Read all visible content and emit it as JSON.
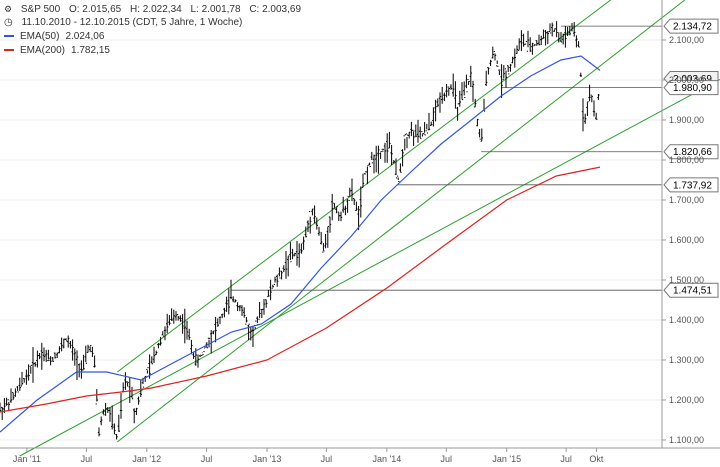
{
  "header": {
    "symbol": "S&P 500",
    "open": "O: 2.015,65",
    "high": "H: 2.022,34",
    "low": "L: 2.001,78",
    "close": "C: 2.003,69",
    "range": "11.10.2010 - 12.10.2015 (CDT, 5 Jahre, 1 Woche)"
  },
  "legend": [
    {
      "label": "EMA(50)",
      "value": "2.024,06",
      "color": "#3355dd"
    },
    {
      "label": "EMA(200)",
      "value": "1.782,15",
      "color": "#dd2222"
    }
  ],
  "chart_data": {
    "type": "line",
    "title": "S&P 500",
    "x_range": [
      "2010-10-11",
      "2015-10-12"
    ],
    "ylim": [
      1080,
      2200
    ],
    "y_ticks": [
      "1.100,00",
      "1.200,00",
      "1.300,00",
      "1.400,00",
      "1.500,00",
      "1.600,00",
      "1.700,00",
      "1.800,00",
      "1.900,00",
      "2.000,00",
      "2.100,00"
    ],
    "x_ticks": [
      {
        "label": "Jan '11",
        "date": "2011-01-01"
      },
      {
        "label": "Jul",
        "date": "2011-07-01"
      },
      {
        "label": "Jan '12",
        "date": "2012-01-01"
      },
      {
        "label": "Jul",
        "date": "2012-07-01"
      },
      {
        "label": "Jan '13",
        "date": "2013-01-01"
      },
      {
        "label": "Jul",
        "date": "2013-07-01"
      },
      {
        "label": "Jan '14",
        "date": "2014-01-01"
      },
      {
        "label": "Jul",
        "date": "2014-07-01"
      },
      {
        "label": "Jan '15",
        "date": "2015-01-01"
      },
      {
        "label": "Jul",
        "date": "2015-07-01"
      },
      {
        "label": "Okt",
        "date": "2015-10-01"
      }
    ],
    "series": [
      {
        "name": "S&P 500",
        "color": "#000000",
        "style": "bars",
        "points": [
          [
            "2010-10-11",
            1175
          ],
          [
            "2010-11-15",
            1200
          ],
          [
            "2010-12-15",
            1240
          ],
          [
            "2011-01-15",
            1280
          ],
          [
            "2011-02-15",
            1320
          ],
          [
            "2011-03-15",
            1300
          ],
          [
            "2011-04-15",
            1330
          ],
          [
            "2011-05-01",
            1355
          ],
          [
            "2011-06-01",
            1300
          ],
          [
            "2011-06-20",
            1270
          ],
          [
            "2011-07-10",
            1340
          ],
          [
            "2011-07-25",
            1300
          ],
          [
            "2011-08-08",
            1120
          ],
          [
            "2011-08-25",
            1180
          ],
          [
            "2011-09-10",
            1170
          ],
          [
            "2011-10-03",
            1100
          ],
          [
            "2011-10-25",
            1250
          ],
          [
            "2011-11-15",
            1230
          ],
          [
            "2011-11-25",
            1160
          ],
          [
            "2011-12-15",
            1230
          ],
          [
            "2012-01-15",
            1290
          ],
          [
            "2012-02-15",
            1360
          ],
          [
            "2012-03-15",
            1400
          ],
          [
            "2012-04-01",
            1415
          ],
          [
            "2012-04-25",
            1390
          ],
          [
            "2012-05-15",
            1340
          ],
          [
            "2012-06-01",
            1290
          ],
          [
            "2012-06-25",
            1330
          ],
          [
            "2012-07-15",
            1360
          ],
          [
            "2012-08-15",
            1405
          ],
          [
            "2012-09-15",
            1460
          ],
          [
            "2012-10-15",
            1430
          ],
          [
            "2012-11-15",
            1360
          ],
          [
            "2012-12-15",
            1420
          ],
          [
            "2013-01-15",
            1480
          ],
          [
            "2013-02-15",
            1520
          ],
          [
            "2013-03-15",
            1560
          ],
          [
            "2013-04-15",
            1570
          ],
          [
            "2013-05-20",
            1680
          ],
          [
            "2013-06-24",
            1570
          ],
          [
            "2013-07-20",
            1690
          ],
          [
            "2013-08-15",
            1660
          ],
          [
            "2013-09-15",
            1720
          ],
          [
            "2013-10-08",
            1660
          ],
          [
            "2013-10-25",
            1760
          ],
          [
            "2013-11-15",
            1800
          ],
          [
            "2013-12-15",
            1820
          ],
          [
            "2014-01-10",
            1840
          ],
          [
            "2014-02-03",
            1745
          ],
          [
            "2014-02-25",
            1850
          ],
          [
            "2014-03-15",
            1870
          ],
          [
            "2014-04-15",
            1860
          ],
          [
            "2014-05-15",
            1890
          ],
          [
            "2014-06-15",
            1960
          ],
          [
            "2014-07-20",
            1985
          ],
          [
            "2014-08-05",
            1930
          ],
          [
            "2014-09-15",
            2010
          ],
          [
            "2014-10-15",
            1830
          ],
          [
            "2014-11-01",
            2020
          ],
          [
            "2014-11-25",
            2070
          ],
          [
            "2014-12-15",
            2000
          ],
          [
            "2015-01-15",
            2040
          ],
          [
            "2015-02-15",
            2100
          ],
          [
            "2015-03-15",
            2080
          ],
          [
            "2015-04-15",
            2100
          ],
          [
            "2015-05-20",
            2130
          ],
          [
            "2015-06-15",
            2100
          ],
          [
            "2015-07-20",
            2125
          ],
          [
            "2015-08-10",
            2080
          ],
          [
            "2015-08-24",
            1880
          ],
          [
            "2015-09-05",
            1950
          ],
          [
            "2015-09-20",
            1960
          ],
          [
            "2015-09-28",
            1880
          ],
          [
            "2015-10-12",
            2003.69
          ]
        ]
      },
      {
        "name": "EMA(50)",
        "color": "#3355dd",
        "points": [
          [
            "2010-10-11",
            1120
          ],
          [
            "2011-02-01",
            1200
          ],
          [
            "2011-06-01",
            1270
          ],
          [
            "2011-09-01",
            1270
          ],
          [
            "2011-12-15",
            1250
          ],
          [
            "2012-03-15",
            1290
          ],
          [
            "2012-06-15",
            1330
          ],
          [
            "2012-09-15",
            1370
          ],
          [
            "2012-12-15",
            1390
          ],
          [
            "2013-03-15",
            1440
          ],
          [
            "2013-06-15",
            1530
          ],
          [
            "2013-09-15",
            1610
          ],
          [
            "2013-12-15",
            1700
          ],
          [
            "2014-03-15",
            1770
          ],
          [
            "2014-06-15",
            1840
          ],
          [
            "2014-09-15",
            1900
          ],
          [
            "2014-12-15",
            1960
          ],
          [
            "2015-03-15",
            2010
          ],
          [
            "2015-06-15",
            2050
          ],
          [
            "2015-08-15",
            2060
          ],
          [
            "2015-10-12",
            2024.06
          ]
        ]
      },
      {
        "name": "EMA(200)",
        "color": "#dd2222",
        "points": [
          [
            "2010-10-11",
            1170
          ],
          [
            "2011-03-01",
            1190
          ],
          [
            "2011-07-01",
            1210
          ],
          [
            "2011-10-15",
            1220
          ],
          [
            "2012-01-15",
            1230
          ],
          [
            "2012-07-01",
            1260
          ],
          [
            "2013-01-01",
            1300
          ],
          [
            "2013-07-01",
            1380
          ],
          [
            "2014-01-01",
            1480
          ],
          [
            "2014-07-01",
            1590
          ],
          [
            "2015-01-01",
            1700
          ],
          [
            "2015-06-01",
            1760
          ],
          [
            "2015-10-12",
            1782.15
          ]
        ]
      }
    ],
    "trendlines": [
      {
        "name": "upper-channel",
        "color": "#2f9e2f",
        "from": [
          "2011-10-03",
          1270
        ],
        "to": [
          "2015-10-12",
          2180
        ]
      },
      {
        "name": "lower-channel",
        "color": "#2f9e2f",
        "from": [
          "2011-10-03",
          1095
        ],
        "to": [
          "2015-10-12",
          2035
        ]
      },
      {
        "name": "long-support",
        "color": "#2f9e2f",
        "from": [
          "2010-12-10",
          1060
        ],
        "to": [
          "2015-10-12",
          1840
        ]
      }
    ],
    "horizontal_levels": [
      {
        "label": "2.134,72",
        "value": 2134.72,
        "start": "2015-06-15"
      },
      {
        "label": "2.003,69",
        "value": 2003.69,
        "start": "2015-10-12",
        "style": "current"
      },
      {
        "label": "1.980,90",
        "value": 1980.9,
        "start": "2014-12-15"
      },
      {
        "label": "1.820,66",
        "value": 1820.66,
        "start": "2014-10-15"
      },
      {
        "label": "1.737,92",
        "value": 1737.92,
        "start": "2014-02-03"
      },
      {
        "label": "1.474,51",
        "value": 1474.51,
        "start": "2012-09-15"
      }
    ]
  }
}
